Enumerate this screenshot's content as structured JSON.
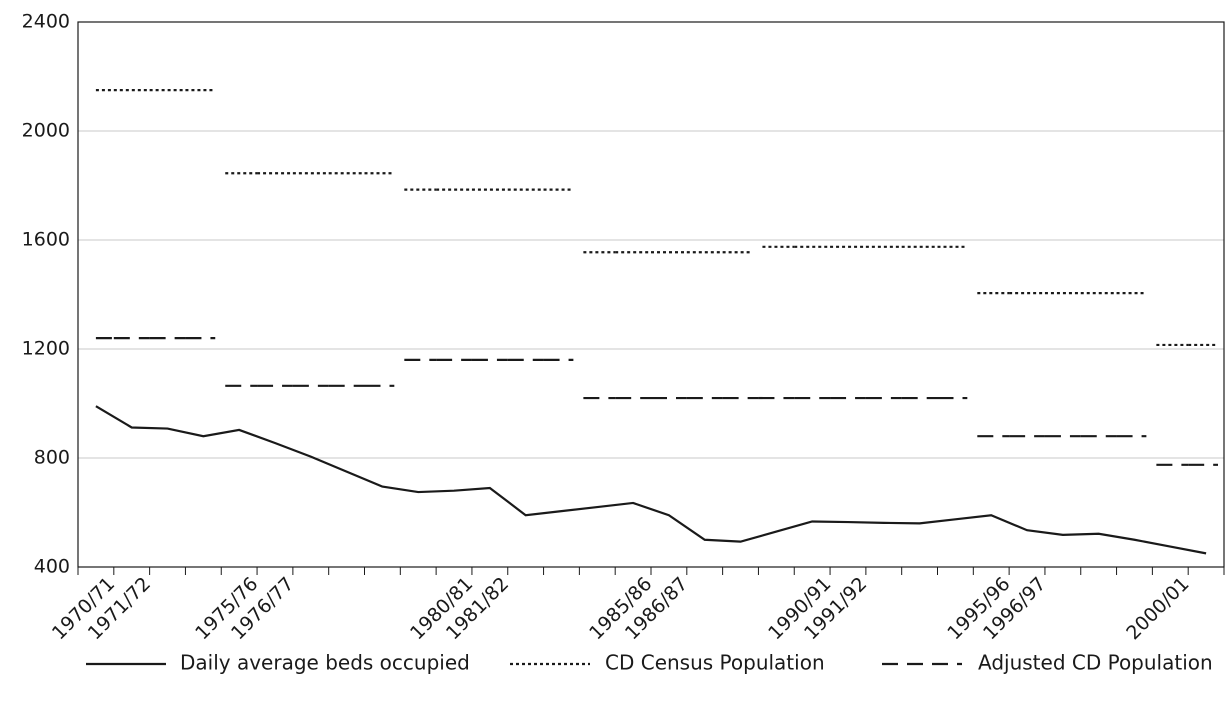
{
  "chart_data": {
    "type": "line",
    "categories": [
      "1970/71",
      "1971/72",
      null,
      null,
      "1975/76",
      "1976/77",
      null,
      null,
      null,
      null,
      "1980/81",
      "1981/82",
      null,
      null,
      null,
      "1985/86",
      "1986/87",
      null,
      null,
      null,
      "1990/91",
      "1991/92",
      null,
      null,
      null,
      "1995/96",
      "1996/97",
      null,
      null,
      null,
      "2000/01",
      null
    ],
    "series": [
      {
        "name": "Daily average beds occupied",
        "color": "#1a1a1a",
        "style": "solid",
        "values": [
          990,
          912,
          908,
          880,
          903,
          855,
          805,
          750,
          695,
          675,
          680,
          690,
          590,
          605,
          620,
          635,
          590,
          500,
          493,
          530,
          567,
          565,
          562,
          560,
          575,
          590,
          535,
          518,
          522,
          500,
          475,
          450
        ]
      },
      {
        "name": "CD Census Population",
        "color": "#1a1a1a",
        "style": "dotted",
        "values": [
          2150,
          2150,
          2150,
          2150,
          1845,
          1845,
          1845,
          1845,
          1845,
          1785,
          1785,
          1785,
          1785,
          1785,
          1555,
          1555,
          1555,
          1555,
          1555,
          1575,
          1575,
          1575,
          1575,
          1575,
          1575,
          1405,
          1405,
          1405,
          1405,
          1405,
          1215,
          1215
        ]
      },
      {
        "name": "Adjusted CD Population",
        "color": "#1a1a1a",
        "style": "dashed",
        "values": [
          1240,
          1240,
          1240,
          1240,
          1065,
          1065,
          1065,
          1065,
          1065,
          1160,
          1160,
          1160,
          1160,
          1160,
          1020,
          1020,
          1020,
          1020,
          1020,
          1020,
          1020,
          1020,
          1020,
          1020,
          1020,
          880,
          880,
          880,
          880,
          880,
          775,
          775
        ]
      }
    ],
    "ylim": [
      400,
      2400
    ],
    "yticks": [
      400,
      800,
      1200,
      1600,
      2000,
      2400
    ],
    "grid": true,
    "legend": "bottom"
  }
}
